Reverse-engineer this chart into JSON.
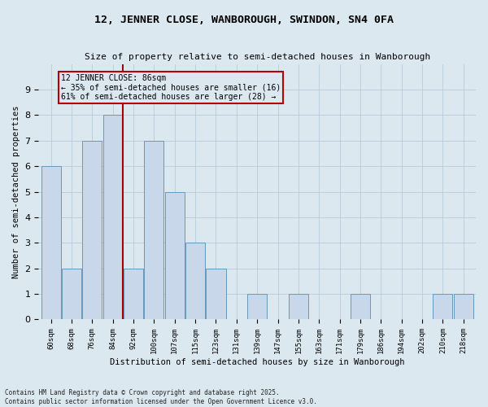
{
  "title": "12, JENNER CLOSE, WANBOROUGH, SWINDON, SN4 0FA",
  "subtitle": "Size of property relative to semi-detached houses in Wanborough",
  "xlabel": "Distribution of semi-detached houses by size in Wanborough",
  "ylabel": "Number of semi-detached properties",
  "footnote1": "Contains HM Land Registry data © Crown copyright and database right 2025.",
  "footnote2": "Contains public sector information licensed under the Open Government Licence v3.0.",
  "bins": [
    "60sqm",
    "68sqm",
    "76sqm",
    "84sqm",
    "92sqm",
    "100sqm",
    "107sqm",
    "115sqm",
    "123sqm",
    "131sqm",
    "139sqm",
    "147sqm",
    "155sqm",
    "163sqm",
    "171sqm",
    "179sqm",
    "186sqm",
    "194sqm",
    "202sqm",
    "210sqm",
    "218sqm"
  ],
  "values": [
    6,
    2,
    7,
    8,
    2,
    7,
    5,
    3,
    2,
    0,
    1,
    0,
    1,
    0,
    0,
    1,
    0,
    0,
    0,
    1,
    1
  ],
  "property_line_bin_index": 3.5,
  "annotation_title": "12 JENNER CLOSE: 86sqm",
  "annotation_line1": "← 35% of semi-detached houses are smaller (16)",
  "annotation_line2": "61% of semi-detached houses are larger (28) →",
  "bar_color": "#c8d8ea",
  "bar_edge_color": "#6699bb",
  "grid_color": "#b0c4d4",
  "vline_color": "#aa0000",
  "annotation_box_edge": "#bb0000",
  "bg_color": "#dce8f0",
  "ylim": [
    0,
    10
  ],
  "yticks": [
    0,
    1,
    2,
    3,
    4,
    5,
    6,
    7,
    8,
    9,
    10
  ]
}
